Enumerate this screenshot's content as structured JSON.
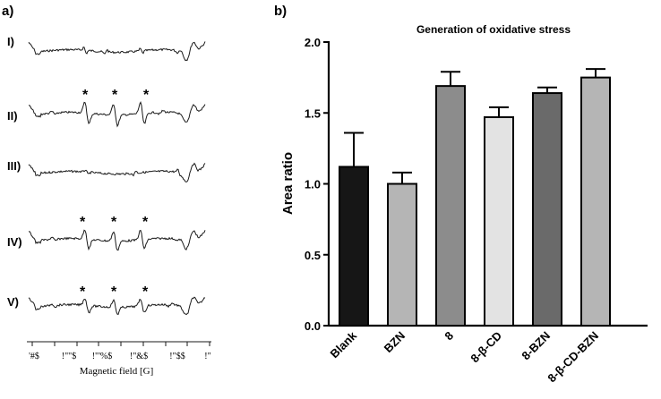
{
  "panel_a": {
    "label": "a)",
    "trace_labels": [
      "I)",
      "II)",
      "III)",
      "IV)",
      "V)"
    ],
    "star_symbol": "*",
    "x_tick_labels": [
      "'#$",
      "!\"\"$",
      "!\"'%$",
      "!\"&$",
      "!\"$$",
      "!\""
    ],
    "x_axis_label": "Magnetic field [G]"
  },
  "panel_b": {
    "label": "b)"
  },
  "chart_data": {
    "type": "bar",
    "title": "Generation of oxidative stress",
    "xlabel": "",
    "ylabel": "Area ratio",
    "categories": [
      "Blank",
      "BZN",
      "8",
      "8-β-CD",
      "8-BZN",
      "8-β-CD-BZN"
    ],
    "values": [
      1.12,
      1.0,
      1.69,
      1.47,
      1.64,
      1.75
    ],
    "errors": [
      0.24,
      0.08,
      0.1,
      0.07,
      0.04,
      0.06
    ],
    "colors": [
      "#161616",
      "#b5b5b5",
      "#8c8c8c",
      "#e3e3e3",
      "#6a6a6a",
      "#b5b5b5"
    ],
    "ylim": [
      0,
      2.0
    ],
    "yticks": [
      "0.0",
      "0.5",
      "1.0",
      "1.5",
      "2.0"
    ]
  }
}
